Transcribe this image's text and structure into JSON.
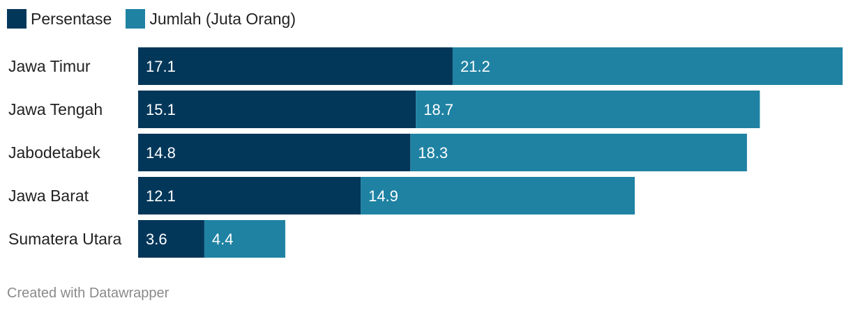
{
  "chart_data": {
    "type": "bar",
    "orientation": "horizontal",
    "stacked": true,
    "categories": [
      "Jawa Timur",
      "Jawa Tengah",
      "Jabodetabek",
      "Jawa Barat",
      "Sumatera Utara"
    ],
    "series": [
      {
        "name": "Persentase",
        "color": "#03375a",
        "values": [
          17.1,
          15.1,
          14.8,
          12.1,
          3.6
        ],
        "labels": [
          "17.1",
          "15.1",
          "14.8",
          "12.1",
          "3.6"
        ]
      },
      {
        "name": "Jumlah (Juta Orang)",
        "color": "#1f82a3",
        "values": [
          21.2,
          18.7,
          18.3,
          14.9,
          4.4
        ],
        "labels": [
          "21.2",
          "18.7",
          "18.3",
          "14.9",
          "4.4"
        ]
      }
    ],
    "legend_position": "top-left",
    "grid": false
  },
  "footer": {
    "credit": "Created with Datawrapper"
  }
}
